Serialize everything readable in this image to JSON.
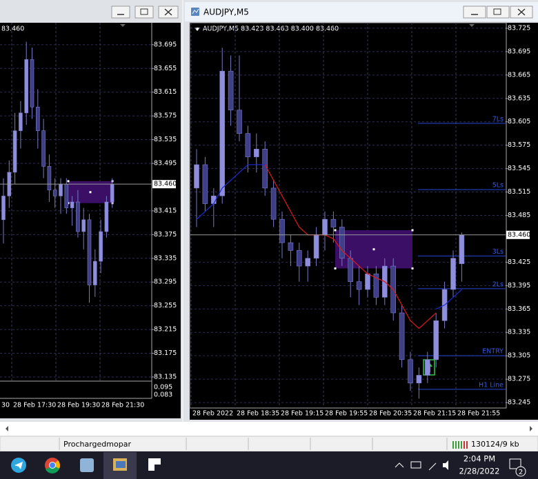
{
  "chart_data": [
    {
      "type": "candlestick",
      "header": "83.460",
      "open": [
        83.4,
        83.44,
        83.48,
        83.55,
        83.58,
        83.67,
        83.59,
        83.55,
        83.49,
        83.45,
        83.44,
        83.46,
        83.42,
        83.43,
        83.38,
        83.4,
        83.29,
        83.33,
        83.38,
        83.43
      ],
      "high": [
        83.47,
        83.5,
        83.58,
        83.6,
        83.7,
        83.69,
        83.62,
        83.57,
        83.51,
        83.47,
        83.47,
        83.47,
        83.44,
        83.45,
        83.42,
        83.41,
        83.35,
        83.4,
        83.44,
        83.47
      ],
      "low": [
        83.36,
        83.42,
        83.46,
        83.52,
        83.56,
        83.57,
        83.52,
        83.47,
        83.43,
        83.42,
        83.41,
        83.41,
        83.39,
        83.37,
        83.35,
        83.26,
        83.27,
        83.31,
        83.37,
        83.42
      ],
      "close": [
        83.44,
        83.48,
        83.55,
        83.58,
        83.67,
        83.59,
        83.55,
        83.49,
        83.45,
        83.44,
        83.46,
        83.42,
        83.43,
        83.38,
        83.4,
        83.29,
        83.33,
        83.38,
        83.43,
        83.46
      ],
      "ylim": [
        83.128,
        83.732
      ],
      "yticks": [
        83.135,
        83.175,
        83.215,
        83.255,
        83.295,
        83.335,
        83.375,
        83.415,
        83.495,
        83.535,
        83.575,
        83.615,
        83.655,
        83.695
      ],
      "current_price": {
        "value": 83.46,
        "label": "83.460"
      },
      "rectangle": {
        "top": 83.465,
        "bottom": 83.428
      },
      "x_labels": [
        "30",
        "28 Feb 17:30",
        "28 Feb 19:30",
        "28 Feb 21:30"
      ],
      "indicator_ticks": [
        0.095,
        0.083
      ]
    },
    {
      "type": "candlestick",
      "title": "AUDJPY,M5",
      "header": "AUDJPY,M5  83.423 83.463 83.400 83.460",
      "open": [
        83.52,
        83.55,
        83.5,
        83.51,
        83.67,
        83.62,
        83.59,
        83.56,
        83.57,
        83.52,
        83.48,
        83.45,
        83.44,
        83.42,
        83.43,
        83.46,
        83.48,
        83.47,
        83.43,
        83.4,
        83.39,
        83.41,
        83.38,
        83.42,
        83.36,
        83.3,
        83.27,
        83.28,
        83.3,
        83.35,
        83.39,
        83.423
      ],
      "high": [
        83.57,
        83.56,
        83.52,
        83.7,
        83.69,
        83.69,
        83.6,
        83.59,
        83.58,
        83.53,
        83.49,
        83.46,
        83.45,
        83.44,
        83.47,
        83.49,
        83.49,
        83.48,
        83.44,
        83.42,
        83.42,
        83.42,
        83.43,
        83.43,
        83.37,
        83.31,
        83.29,
        83.31,
        83.36,
        83.4,
        83.44,
        83.463
      ],
      "low": [
        83.47,
        83.49,
        83.47,
        83.5,
        83.6,
        83.58,
        83.54,
        83.54,
        83.51,
        83.47,
        83.43,
        83.42,
        83.4,
        83.4,
        83.42,
        83.44,
        83.45,
        83.42,
        83.38,
        83.37,
        83.38,
        83.37,
        83.37,
        83.35,
        83.29,
        83.26,
        83.25,
        83.27,
        83.29,
        83.34,
        83.38,
        83.4
      ],
      "close": [
        83.55,
        83.5,
        83.51,
        83.67,
        83.62,
        83.59,
        83.56,
        83.57,
        83.52,
        83.48,
        83.45,
        83.44,
        83.42,
        83.43,
        83.46,
        83.48,
        83.47,
        83.43,
        83.4,
        83.39,
        83.41,
        83.38,
        83.42,
        83.36,
        83.3,
        83.27,
        83.28,
        83.3,
        83.35,
        83.39,
        83.43,
        83.46
      ],
      "ma_red": [
        null,
        null,
        null,
        null,
        null,
        null,
        null,
        null,
        83.55,
        83.53,
        83.51,
        83.49,
        83.47,
        83.46,
        83.46,
        83.46,
        83.455,
        83.44,
        83.43,
        83.42,
        83.41,
        83.405,
        83.4,
        83.39,
        83.37,
        83.35,
        83.34,
        83.35,
        83.36,
        null,
        null,
        null
      ],
      "ma_blue": [
        83.48,
        83.49,
        83.5,
        83.52,
        83.53,
        83.54,
        83.55,
        83.55,
        83.55,
        null,
        null,
        null,
        null,
        null,
        null,
        null,
        null,
        null,
        null,
        null,
        null,
        null,
        null,
        null,
        null,
        null,
        null,
        null,
        83.365,
        83.37,
        83.38,
        83.39
      ],
      "ylim": [
        83.238,
        83.732
      ],
      "yticks": [
        83.245,
        83.275,
        83.305,
        83.335,
        83.365,
        83.395,
        83.425,
        83.485,
        83.515,
        83.545,
        83.575,
        83.605,
        83.635,
        83.665,
        83.695,
        83.725
      ],
      "current_price": {
        "value": 83.46,
        "label": "83.460"
      },
      "rectangle": {
        "top": 83.466,
        "bottom": 83.417
      },
      "levels": [
        {
          "name": "7Ls",
          "value": 83.603
        },
        {
          "name": "5Ls",
          "value": 83.518
        },
        {
          "name": "3Ls",
          "value": 83.433
        },
        {
          "name": "2Ls",
          "value": 83.391
        },
        {
          "name": "ENTRY",
          "value": 83.305
        },
        {
          "name": "H1 Line",
          "value": 83.262
        }
      ],
      "x_labels": [
        "28 Feb 2022",
        "28 Feb 18:35",
        "28 Feb 19:15",
        "28 Feb 19:55",
        "28 Feb 20:35",
        "28 Feb 21:15",
        "28 Feb 21:55"
      ]
    }
  ],
  "status_bar": {
    "profile": "Prochargedmopar",
    "traffic": "130124/9 kb"
  },
  "taskbar": {
    "time": "2:04 PM",
    "date": "2/28/2022",
    "notifications": "2"
  }
}
